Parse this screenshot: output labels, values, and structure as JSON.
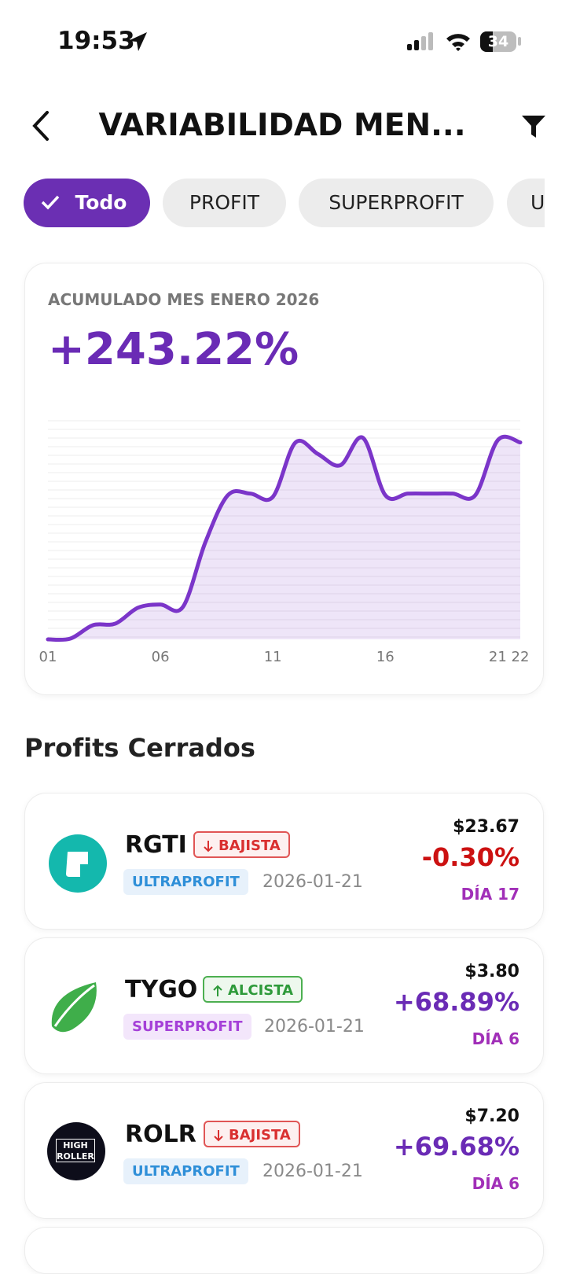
{
  "status": {
    "time": "19:53",
    "battery": "34"
  },
  "header": {
    "title": "VARIABILIDAD MEN..."
  },
  "filters": [
    "Todo",
    "PROFIT",
    "SUPERPROFIT",
    "U"
  ],
  "summary": {
    "label": "ACUMULADO MES ENERO 2026",
    "value": "+243.22%"
  },
  "chart_data": {
    "type": "line",
    "color": "#7b35c9",
    "x": [
      "01",
      null,
      null,
      null,
      null,
      "06",
      null,
      null,
      null,
      null,
      "11",
      null,
      null,
      null,
      null,
      "16",
      null,
      null,
      null,
      null,
      "21",
      "22"
    ],
    "values": [
      0,
      1,
      17.5,
      19.5,
      39,
      43,
      40,
      120,
      178,
      180,
      176,
      243,
      229,
      215,
      249,
      178,
      180,
      180,
      180,
      178,
      246,
      243.22
    ],
    "ylim": [
      0,
      270
    ]
  },
  "section": {
    "title": "Profits Cerrados"
  },
  "trades": [
    {
      "ticker": "RGTI",
      "trend": "BAJISTA",
      "category": "ULTRAPROFIT",
      "date": "2026-01-21",
      "price": "$23.67",
      "change": "-0.30%",
      "day": "DÍA 17"
    },
    {
      "ticker": "TYGO",
      "trend": "ALCISTA",
      "category": "SUPERPROFIT",
      "date": "2026-01-21",
      "price": "$3.80",
      "change": "+68.89%",
      "day": "DÍA 6"
    },
    {
      "ticker": "ROLR",
      "trend": "BAJISTA",
      "category": "ULTRAPROFIT",
      "date": "2026-01-21",
      "price": "$7.20",
      "change": "+69.68%",
      "day": "DÍA 6",
      "logo_text": [
        "HIGH",
        "ROLLER"
      ]
    }
  ]
}
